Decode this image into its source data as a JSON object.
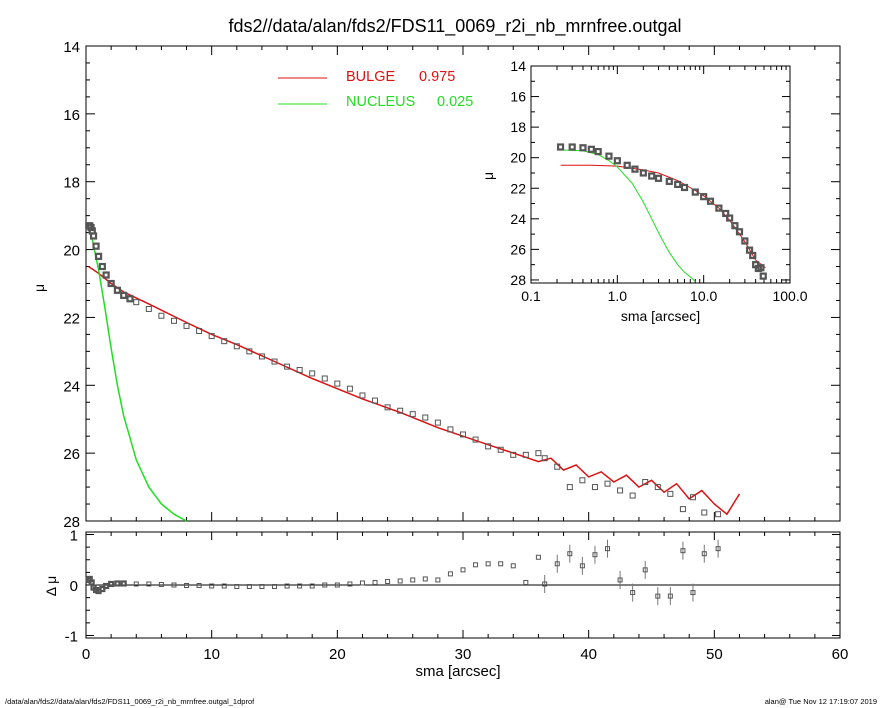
{
  "title": "fds2//data/alan/fds2/FDS11_0069_r2i_nb_mrnfree.outgal",
  "footer": {
    "left": "/data/alan/fds2//data/alan/fds2/FDS11_0069_r2i_nb_mrnfree.outgal_1dprof",
    "right": "alan@  Tue Nov 12 17:19:07 2019"
  },
  "colors": {
    "bulge": "#dd1111",
    "nucleus": "#22dd22",
    "data": "#555555"
  },
  "chart_data": [
    {
      "type": "line",
      "panel": "main",
      "title": "fds2//data/alan/fds2/FDS11_0069_r2i_nb_mrnfree.outgal",
      "xlabel": "",
      "ylabel": "μ",
      "xlim": [
        0,
        60
      ],
      "ylim": [
        28,
        14
      ],
      "y_inverted": true,
      "x_ticks": [],
      "y_ticks": [
        14,
        16,
        18,
        20,
        22,
        24,
        26,
        28
      ],
      "legend": {
        "placement": "top-center",
        "entries": [
          {
            "name": "BULGE",
            "value": "0.975",
            "color": "#dd1111"
          },
          {
            "name": "NUCLEUS",
            "value": "0.025",
            "color": "#22dd22"
          }
        ]
      },
      "series": [
        {
          "name": "BULGE",
          "color": "#dd1111",
          "x": [
            0.2,
            1,
            2,
            3,
            5,
            8,
            10,
            12,
            15,
            18,
            20,
            22,
            25,
            28,
            30,
            32,
            34,
            36,
            37,
            38,
            39,
            40,
            41,
            42,
            43,
            44,
            45,
            46,
            47,
            48,
            49,
            50,
            51,
            52
          ],
          "y": [
            20.5,
            20.7,
            21.0,
            21.25,
            21.6,
            22.15,
            22.5,
            22.8,
            23.3,
            23.8,
            24.1,
            24.4,
            24.8,
            25.25,
            25.5,
            25.75,
            26.0,
            26.25,
            26.15,
            26.5,
            26.35,
            26.7,
            26.55,
            26.85,
            26.65,
            27.0,
            26.8,
            27.15,
            26.9,
            27.35,
            27.1,
            27.5,
            27.8,
            27.2
          ]
        },
        {
          "name": "NUCLEUS",
          "color": "#22dd22",
          "x": [
            0.2,
            0.5,
            1,
            1.5,
            2,
            2.5,
            3,
            4,
            5,
            6,
            7,
            8
          ],
          "y": [
            19.4,
            19.7,
            20.6,
            21.7,
            22.9,
            24.0,
            24.9,
            26.2,
            27.0,
            27.5,
            27.8,
            28.0
          ]
        },
        {
          "name": "",
          "kind": "points",
          "color": "#555555",
          "x": [
            0.22,
            0.3,
            0.4,
            0.5,
            0.6,
            0.8,
            1.0,
            1.3,
            1.6,
            2.0,
            2.5,
            3.0,
            3.5,
            4,
            5,
            6,
            7,
            8,
            9,
            10,
            11,
            12,
            13,
            14,
            15,
            16,
            17,
            18,
            19,
            20,
            21,
            22,
            23,
            24,
            25,
            26,
            27,
            28,
            29,
            30,
            31,
            32,
            33,
            34,
            35,
            36,
            36.5,
            37.5,
            38.5,
            39.5,
            40.5,
            41.5,
            42.5,
            43.5,
            44.5,
            45.5,
            46.5,
            47.5,
            48.3,
            49.2,
            50.3
          ],
          "y": [
            19.3,
            19.3,
            19.35,
            19.45,
            19.6,
            19.9,
            20.2,
            20.5,
            20.75,
            21.0,
            21.2,
            21.35,
            21.45,
            21.55,
            21.75,
            21.95,
            22.1,
            22.25,
            22.4,
            22.55,
            22.7,
            22.85,
            23.0,
            23.15,
            23.3,
            23.45,
            23.55,
            23.65,
            23.8,
            23.95,
            24.1,
            24.3,
            24.45,
            24.65,
            24.75,
            24.85,
            24.95,
            25.1,
            25.3,
            25.45,
            25.6,
            25.8,
            25.9,
            26.05,
            26.05,
            26.0,
            26.15,
            26.4,
            27.0,
            26.8,
            27.0,
            26.9,
            27.1,
            27.25,
            26.85,
            27.0,
            27.2,
            27.65,
            27.3,
            27.75,
            27.8
          ]
        }
      ]
    },
    {
      "type": "scatter",
      "panel": "residual",
      "xlabel": "sma [arcsec]",
      "ylabel": "Δ μ",
      "xlim": [
        0,
        60
      ],
      "ylim": [
        -1.05,
        1.05
      ],
      "x_ticks": [
        0,
        10,
        20,
        30,
        40,
        50,
        60
      ],
      "y_ticks": [
        -1,
        0,
        1
      ],
      "zero_line": true,
      "series": [
        {
          "name": "",
          "color": "#555555",
          "x": [
            0.2,
            0.3,
            0.45,
            0.6,
            0.8,
            1.0,
            1.3,
            1.6,
            2.0,
            2.5,
            3.0,
            4,
            5,
            6,
            7,
            8,
            9,
            10,
            11,
            12,
            13,
            14,
            15,
            16,
            17,
            18,
            19,
            20,
            21,
            22,
            23,
            24,
            25,
            26,
            27,
            28,
            29,
            30,
            31,
            32,
            33,
            34,
            35,
            36,
            36.5,
            37.5,
            38.5,
            39.5,
            40.5,
            41.5,
            42.5,
            43.5,
            44.5,
            45.5,
            46.5,
            47.5,
            48.3,
            49.2,
            50.3
          ],
          "y": [
            0.1,
            0.12,
            0.05,
            -0.05,
            -0.1,
            -0.12,
            -0.08,
            -0.02,
            0.02,
            0.03,
            0.03,
            0.02,
            0.02,
            0.01,
            0.0,
            -0.01,
            -0.01,
            -0.02,
            -0.02,
            -0.03,
            -0.03,
            -0.03,
            -0.03,
            -0.02,
            -0.02,
            -0.02,
            0.0,
            0.0,
            0.02,
            0.04,
            0.05,
            0.07,
            0.08,
            0.1,
            0.12,
            0.1,
            0.22,
            0.3,
            0.4,
            0.42,
            0.42,
            0.38,
            0.05,
            0.55,
            0.02,
            0.42,
            0.62,
            0.38,
            0.6,
            0.72,
            0.1,
            -0.15,
            0.3,
            -0.22,
            -0.22,
            0.68,
            -0.15,
            0.62,
            0.72
          ]
        }
      ]
    },
    {
      "type": "line",
      "panel": "inset",
      "xlabel": "sma [arcsec]",
      "ylabel": "μ",
      "x_scale": "log",
      "xlim": [
        0.1,
        100
      ],
      "ylim": [
        28.2,
        14
      ],
      "y_inverted": true,
      "x_ticks": [
        "0.1",
        "1.0",
        "10.0",
        "100.0"
      ],
      "x_tick_values": [
        0.1,
        1,
        10,
        100
      ],
      "y_ticks": [
        14,
        16,
        18,
        20,
        22,
        24,
        26,
        28
      ],
      "series": [
        {
          "name": "BULGE",
          "color": "#dd1111",
          "x": [
            0.22,
            0.5,
            1,
            2,
            3,
            5,
            8,
            10,
            15,
            20,
            30,
            40,
            52
          ],
          "y": [
            20.5,
            20.5,
            20.55,
            20.8,
            21.0,
            21.5,
            22.15,
            22.5,
            23.3,
            24.1,
            25.5,
            26.7,
            27.2
          ]
        },
        {
          "name": "NUCLEUS",
          "color": "#22dd22",
          "x": [
            0.22,
            0.4,
            0.6,
            0.8,
            1.0,
            1.5,
            2,
            2.5,
            3,
            4,
            5,
            6,
            7,
            8
          ],
          "y": [
            19.5,
            19.55,
            19.8,
            20.2,
            20.6,
            21.7,
            22.9,
            24.0,
            24.9,
            26.2,
            27.0,
            27.5,
            27.8,
            28.1
          ]
        },
        {
          "name": "",
          "kind": "points",
          "color": "#555555",
          "x": [
            0.22,
            0.3,
            0.4,
            0.5,
            0.6,
            0.8,
            1.0,
            1.3,
            1.6,
            2.0,
            2.5,
            3.0,
            4,
            5,
            6,
            8,
            10,
            12,
            15,
            18,
            20,
            23,
            26,
            30,
            34,
            37,
            40,
            43,
            46,
            49
          ],
          "y": [
            19.3,
            19.3,
            19.35,
            19.45,
            19.6,
            19.9,
            20.2,
            20.5,
            20.75,
            21.0,
            21.2,
            21.35,
            21.55,
            21.75,
            21.95,
            22.25,
            22.55,
            22.85,
            23.3,
            23.65,
            23.95,
            24.45,
            24.85,
            25.45,
            26.05,
            26.4,
            27.0,
            27.25,
            27.2,
            27.75
          ]
        }
      ]
    }
  ]
}
